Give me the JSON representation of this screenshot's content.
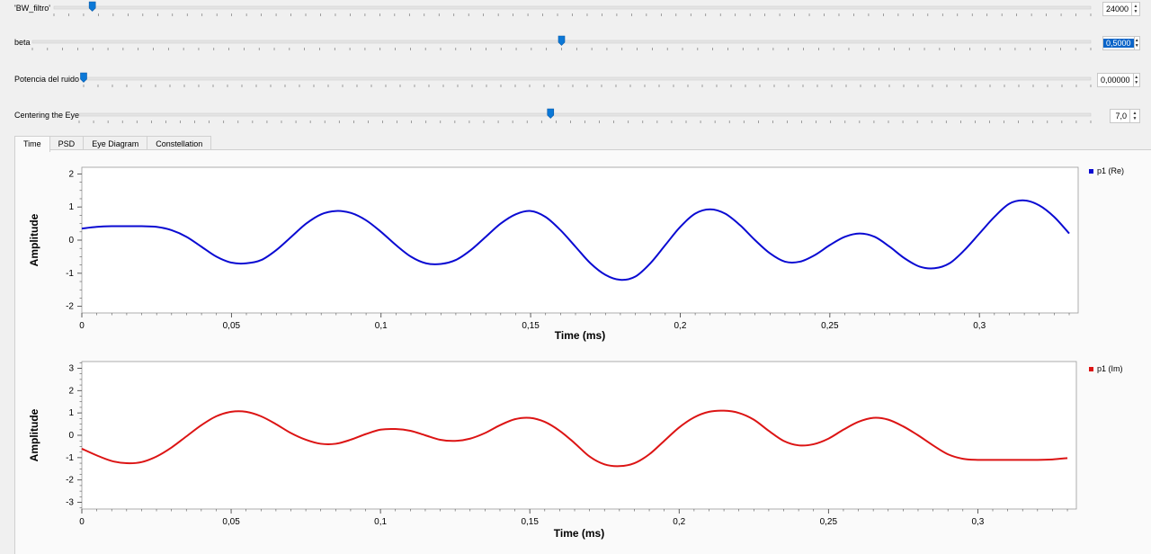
{
  "sliders": [
    {
      "label": "'BW_filtro'",
      "value": "24000",
      "fraction": 0.037,
      "selected": false
    },
    {
      "label": "beta",
      "value": "0,5000",
      "fraction": 0.5,
      "selected": true
    },
    {
      "label": "Potencia del ruido",
      "value": "0,00000",
      "fraction": 0.0,
      "selected": false
    },
    {
      "label": "Centering the Eye",
      "value": "7,0",
      "fraction": 0.466,
      "selected": false
    }
  ],
  "tabs": [
    {
      "label": "Time",
      "active": true
    },
    {
      "label": "PSD",
      "active": false
    },
    {
      "label": "Eye Diagram",
      "active": false
    },
    {
      "label": "Constellation",
      "active": false
    }
  ],
  "chart_data": [
    {
      "type": "line",
      "xlabel": "Time (ms)",
      "ylabel": "Amplitude",
      "xlim": [
        0,
        0.333
      ],
      "ylim": [
        -2.2,
        2.2
      ],
      "xticks": [
        "0",
        "0,05",
        "0,1",
        "0,15",
        "0,2",
        "0,25",
        "0,3"
      ],
      "yticks": [
        "2",
        "1",
        "0",
        "-1",
        "-2"
      ],
      "legend_position": "top-right",
      "color": "#0a0ad2",
      "series": [
        {
          "name": "p1 (Re)",
          "x": [
            0,
            0.005,
            0.01,
            0.015,
            0.02,
            0.025,
            0.03,
            0.035,
            0.04,
            0.045,
            0.05,
            0.055,
            0.06,
            0.065,
            0.07,
            0.075,
            0.08,
            0.085,
            0.09,
            0.095,
            0.1,
            0.105,
            0.11,
            0.115,
            0.12,
            0.125,
            0.13,
            0.135,
            0.14,
            0.145,
            0.15,
            0.155,
            0.16,
            0.165,
            0.17,
            0.175,
            0.18,
            0.185,
            0.19,
            0.195,
            0.2,
            0.205,
            0.21,
            0.215,
            0.22,
            0.225,
            0.23,
            0.235,
            0.24,
            0.245,
            0.25,
            0.255,
            0.26,
            0.265,
            0.27,
            0.275,
            0.28,
            0.285,
            0.29,
            0.295,
            0.3,
            0.305,
            0.31,
            0.315,
            0.32,
            0.325,
            0.33
          ],
          "y": [
            0.35,
            0.4,
            0.42,
            0.42,
            0.42,
            0.4,
            0.3,
            0.1,
            -0.2,
            -0.5,
            -0.68,
            -0.7,
            -0.6,
            -0.3,
            0.1,
            0.5,
            0.78,
            0.88,
            0.82,
            0.6,
            0.25,
            -0.15,
            -0.5,
            -0.7,
            -0.72,
            -0.6,
            -0.3,
            0.1,
            0.5,
            0.78,
            0.88,
            0.7,
            0.3,
            -0.2,
            -0.7,
            -1.05,
            -1.2,
            -1.1,
            -0.7,
            -0.15,
            0.4,
            0.8,
            0.93,
            0.8,
            0.45,
            0.0,
            -0.4,
            -0.65,
            -0.65,
            -0.45,
            -0.15,
            0.1,
            0.2,
            0.1,
            -0.2,
            -0.55,
            -0.8,
            -0.85,
            -0.7,
            -0.3,
            0.2,
            0.7,
            1.1,
            1.2,
            1.05,
            0.7,
            0.2
          ]
        }
      ]
    },
    {
      "type": "line",
      "xlabel": "Time (ms)",
      "ylabel": "Amplitude",
      "xlim": [
        0,
        0.333
      ],
      "ylim": [
        -3.3,
        3.3
      ],
      "xticks": [
        "0",
        "0,05",
        "0,1",
        "0,15",
        "0,2",
        "0,25",
        "0,3"
      ],
      "yticks": [
        "3",
        "2",
        "1",
        "0",
        "-1",
        "-2",
        "-3"
      ],
      "legend_position": "top-right",
      "color": "#dc1414",
      "series": [
        {
          "name": "p1 (Im)",
          "x": [
            0,
            0.005,
            0.01,
            0.015,
            0.02,
            0.025,
            0.03,
            0.035,
            0.04,
            0.045,
            0.05,
            0.055,
            0.06,
            0.065,
            0.07,
            0.075,
            0.08,
            0.085,
            0.09,
            0.095,
            0.1,
            0.105,
            0.11,
            0.115,
            0.12,
            0.125,
            0.13,
            0.135,
            0.14,
            0.145,
            0.15,
            0.155,
            0.16,
            0.165,
            0.17,
            0.175,
            0.18,
            0.185,
            0.19,
            0.195,
            0.2,
            0.205,
            0.21,
            0.215,
            0.22,
            0.225,
            0.23,
            0.235,
            0.24,
            0.245,
            0.25,
            0.255,
            0.26,
            0.265,
            0.27,
            0.275,
            0.28,
            0.285,
            0.29,
            0.295,
            0.3,
            0.305,
            0.31,
            0.315,
            0.32,
            0.325,
            0.33
          ],
          "y": [
            -0.6,
            -0.9,
            -1.15,
            -1.25,
            -1.2,
            -0.95,
            -0.55,
            -0.05,
            0.45,
            0.85,
            1.05,
            1.05,
            0.85,
            0.5,
            0.1,
            -0.2,
            -0.38,
            -0.38,
            -0.2,
            0.05,
            0.25,
            0.28,
            0.2,
            0.0,
            -0.2,
            -0.25,
            -0.15,
            0.1,
            0.45,
            0.72,
            0.78,
            0.6,
            0.2,
            -0.35,
            -0.95,
            -1.3,
            -1.38,
            -1.25,
            -0.85,
            -0.25,
            0.35,
            0.8,
            1.05,
            1.1,
            1.0,
            0.7,
            0.2,
            -0.25,
            -0.45,
            -0.4,
            -0.15,
            0.25,
            0.6,
            0.78,
            0.7,
            0.4,
            0.0,
            -0.45,
            -0.85,
            -1.05,
            -1.1,
            -1.1,
            -1.1,
            -1.1,
            -1.1,
            -1.08,
            -1.02
          ]
        }
      ]
    }
  ]
}
